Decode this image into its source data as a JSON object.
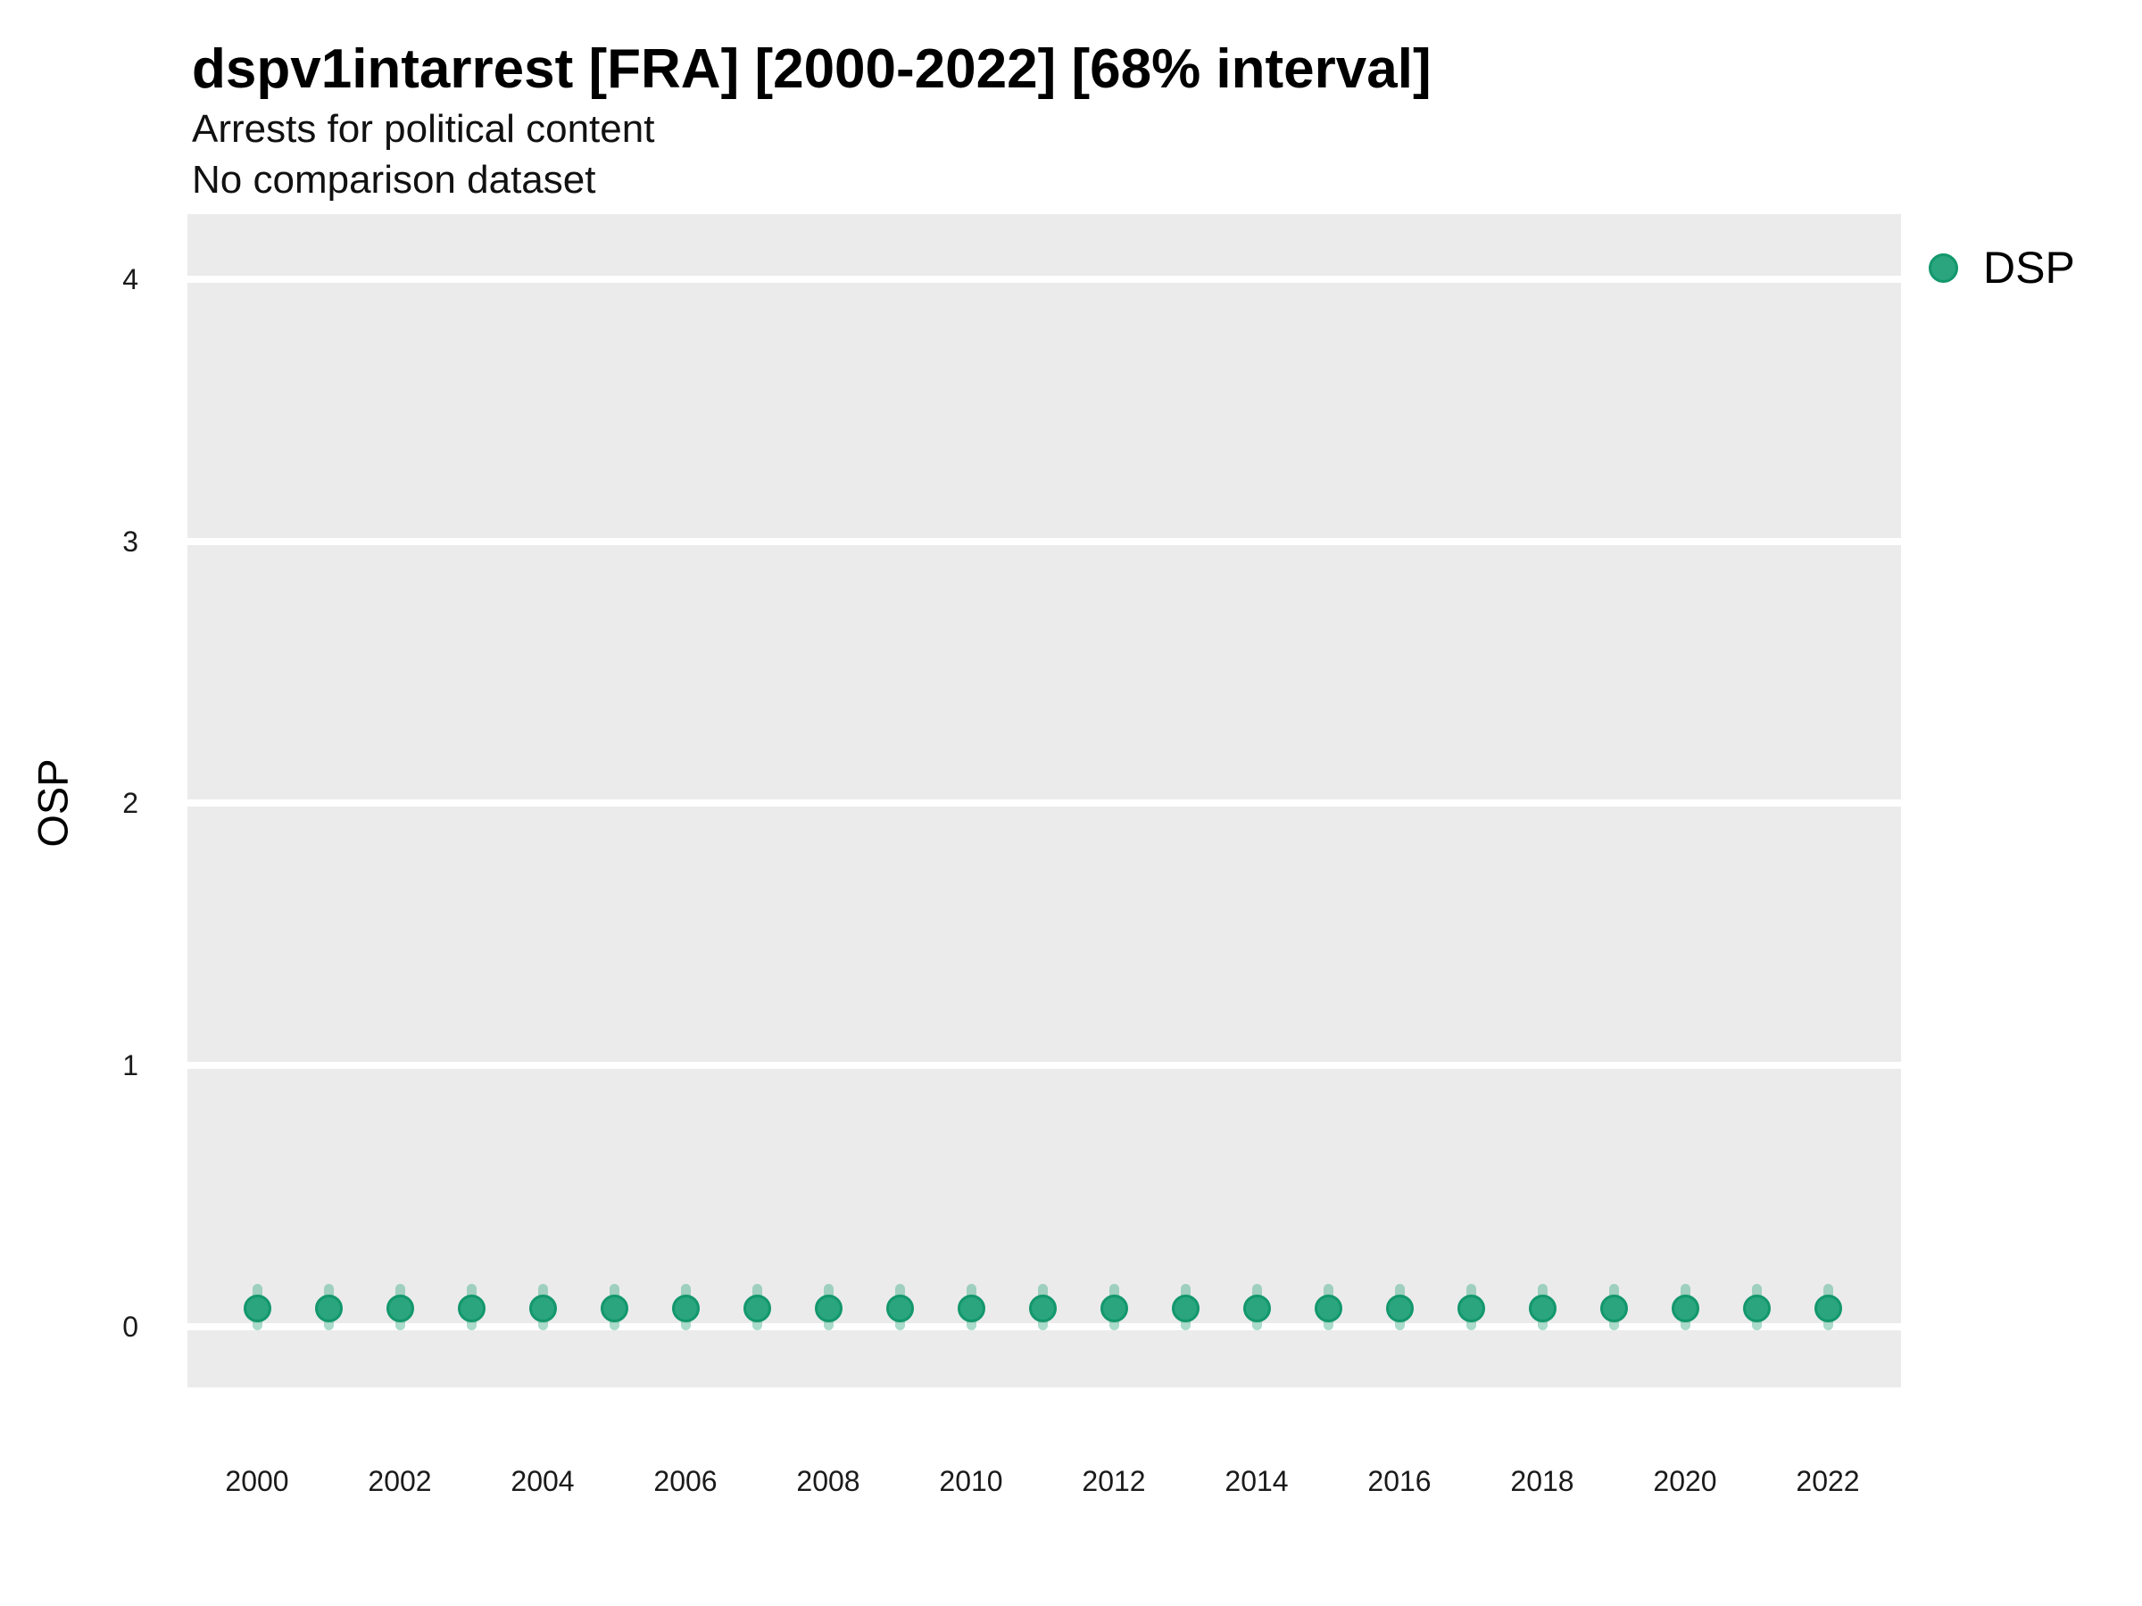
{
  "chart_data": {
    "type": "scatter",
    "subtype": "pointrange",
    "title": "dspv1intarrest [FRA] [2000-2022] [68% interval]",
    "subtitle": "Arrests for political content",
    "note": "No comparison dataset",
    "xlabel": "",
    "ylabel": "OSP",
    "grid": "horizontal major gridlines, white on grey panel",
    "legend_position": "right-top",
    "legend": [
      {
        "label": "DSP",
        "color": "#2aa57e"
      }
    ],
    "colors": {
      "point_fill": "#2aa57e",
      "point_stroke": "#13976c",
      "interval_bar": "rgba(42,165,126,0.40)",
      "panel_background": "#ebebeb",
      "gridline": "#ffffff"
    },
    "xlim": [
      1999,
      2023
    ],
    "ylim": [
      -0.2,
      4.25
    ],
    "x_ticks": [
      2000,
      2002,
      2004,
      2006,
      2008,
      2010,
      2012,
      2014,
      2016,
      2018,
      2020,
      2022
    ],
    "y_ticks": [
      0,
      1,
      2,
      3,
      4
    ],
    "series": [
      {
        "name": "DSP",
        "interval": "68%",
        "years": [
          2000,
          2001,
          2002,
          2003,
          2004,
          2005,
          2006,
          2007,
          2008,
          2009,
          2010,
          2011,
          2012,
          2013,
          2014,
          2015,
          2016,
          2017,
          2018,
          2019,
          2020,
          2021,
          2022
        ],
        "values": [
          0.07,
          0.07,
          0.07,
          0.07,
          0.07,
          0.07,
          0.07,
          0.07,
          0.07,
          0.07,
          0.07,
          0.07,
          0.07,
          0.07,
          0.07,
          0.07,
          0.07,
          0.07,
          0.07,
          0.07,
          0.07,
          0.07,
          0.07
        ],
        "interval_low": [
          0,
          0,
          0,
          0,
          0,
          0,
          0,
          0,
          0,
          0,
          0,
          0,
          0,
          0,
          0,
          0,
          0,
          0,
          0,
          0,
          0,
          0,
          0
        ],
        "interval_high": [
          0.15,
          0.15,
          0.15,
          0.15,
          0.15,
          0.15,
          0.15,
          0.15,
          0.15,
          0.15,
          0.15,
          0.15,
          0.15,
          0.15,
          0.15,
          0.15,
          0.15,
          0.15,
          0.15,
          0.15,
          0.15,
          0.15,
          0.15
        ]
      }
    ]
  }
}
